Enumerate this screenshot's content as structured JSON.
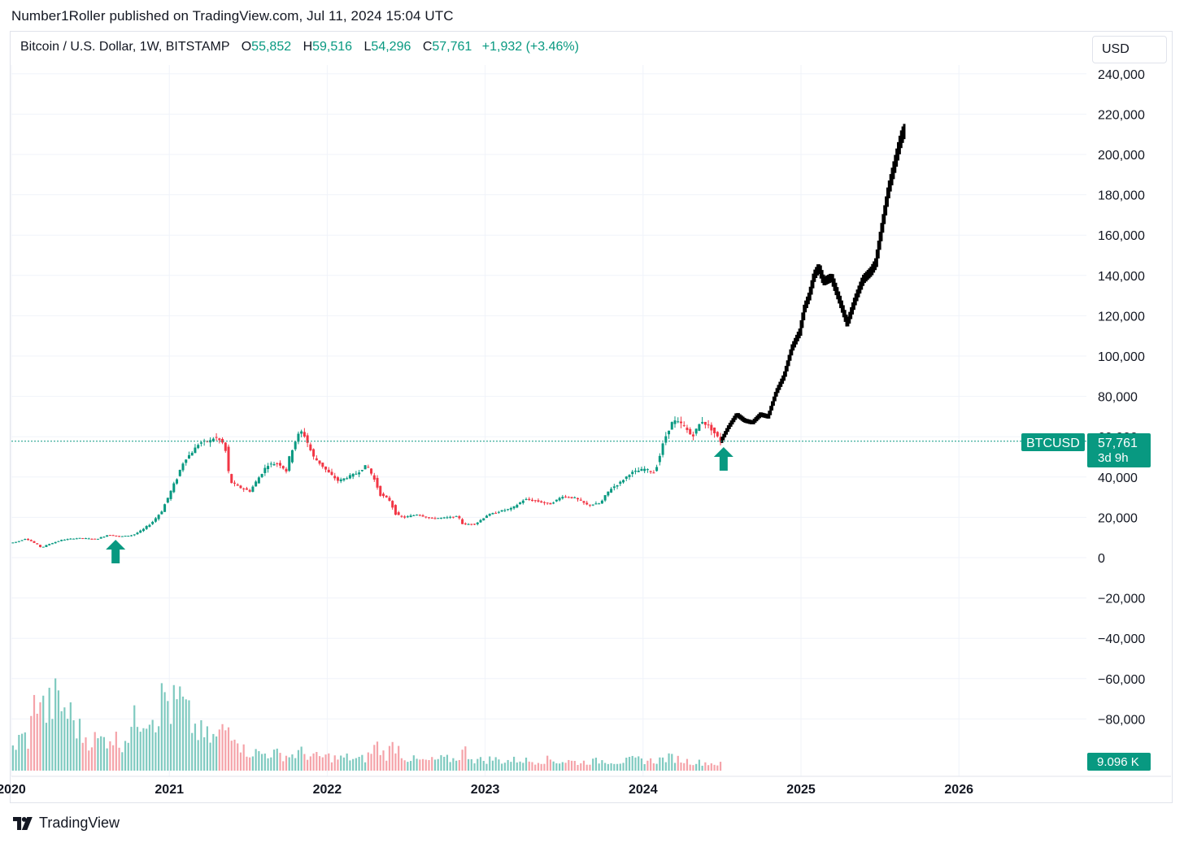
{
  "header": {
    "publisher_line": "Number1Roller published on TradingView.com, Jul 11, 2024 15:04 UTC"
  },
  "legend": {
    "symbol": "Bitcoin / U.S. Dollar, 1W, BITSTAMP",
    "open_key": "O",
    "open": "55,852",
    "high_key": "H",
    "high": "59,516",
    "low_key": "L",
    "low": "54,296",
    "close_key": "C",
    "close": "57,761",
    "change": "+1,932 (+3.46%)"
  },
  "currency_button": "USD",
  "footer": {
    "brand": "TradingView"
  },
  "price_tag": {
    "symbol": "BTCUSD",
    "price": "57,761",
    "countdown": "3d 9h"
  },
  "volume_tag": "9.096 K",
  "colors": {
    "up": "#089981",
    "down": "#f23645",
    "up_volume": "#7fcac0",
    "down_volume": "#f5a3a9",
    "projection": "#000000",
    "arrow": "#089981",
    "grid": "#f0f3fa",
    "axis_text": "#131722"
  },
  "chart_data": {
    "type": "candlestick",
    "interval": "1W",
    "x_axis_labels": [
      "2020",
      "2021",
      "2022",
      "2023",
      "2024",
      "2025",
      "2026"
    ],
    "y_axis_labels": [
      "240,000",
      "220,000",
      "200,000",
      "180,000",
      "160,000",
      "140,000",
      "120,000",
      "100,000",
      "80,000",
      "60,000",
      "40,000",
      "20,000",
      "0",
      "−20,000",
      "−40,000",
      "−60,000",
      "−80,000"
    ],
    "ylim": [
      -100000,
      250000
    ],
    "xlim": [
      2020.0,
      2026.6
    ],
    "grid": true,
    "current_price": 57761,
    "price_path": [
      [
        2020.0,
        7200
      ],
      [
        2020.05,
        8000
      ],
      [
        2020.1,
        9500
      ],
      [
        2020.14,
        8000
      ],
      [
        2020.2,
        5000
      ],
      [
        2020.25,
        6800
      ],
      [
        2020.33,
        8800
      ],
      [
        2020.4,
        9500
      ],
      [
        2020.45,
        9700
      ],
      [
        2020.55,
        9200
      ],
      [
        2020.62,
        11300
      ],
      [
        2020.7,
        10500
      ],
      [
        2020.78,
        11200
      ],
      [
        2020.84,
        13800
      ],
      [
        2020.9,
        17500
      ],
      [
        2020.96,
        23000
      ],
      [
        2021.02,
        33000
      ],
      [
        2021.05,
        38000
      ],
      [
        2021.1,
        48000
      ],
      [
        2021.15,
        52000
      ],
      [
        2021.2,
        57000
      ],
      [
        2021.27,
        58000
      ],
      [
        2021.3,
        60000
      ],
      [
        2021.36,
        56000
      ],
      [
        2021.39,
        38000
      ],
      [
        2021.45,
        35000
      ],
      [
        2021.52,
        33000
      ],
      [
        2021.57,
        39000
      ],
      [
        2021.63,
        46000
      ],
      [
        2021.7,
        47000
      ],
      [
        2021.75,
        43000
      ],
      [
        2021.79,
        55000
      ],
      [
        2021.84,
        63000
      ],
      [
        2021.87,
        60000
      ],
      [
        2021.92,
        50000
      ],
      [
        2021.96,
        47000
      ],
      [
        2022.02,
        42000
      ],
      [
        2022.08,
        38000
      ],
      [
        2022.14,
        40000
      ],
      [
        2022.2,
        42000
      ],
      [
        2022.26,
        46000
      ],
      [
        2022.3,
        40000
      ],
      [
        2022.35,
        31000
      ],
      [
        2022.4,
        29000
      ],
      [
        2022.45,
        21000
      ],
      [
        2022.5,
        20000
      ],
      [
        2022.58,
        21500
      ],
      [
        2022.66,
        19500
      ],
      [
        2022.76,
        19800
      ],
      [
        2022.84,
        20500
      ],
      [
        2022.87,
        16500
      ],
      [
        2022.95,
        16800
      ],
      [
        2023.02,
        21000
      ],
      [
        2023.1,
        23000
      ],
      [
        2023.18,
        24500
      ],
      [
        2023.26,
        29000
      ],
      [
        2023.34,
        28000
      ],
      [
        2023.42,
        26500
      ],
      [
        2023.5,
        30500
      ],
      [
        2023.58,
        29500
      ],
      [
        2023.66,
        26000
      ],
      [
        2023.74,
        27000
      ],
      [
        2023.8,
        34000
      ],
      [
        2023.86,
        37000
      ],
      [
        2023.93,
        42000
      ],
      [
        2024.02,
        44000
      ],
      [
        2024.08,
        42000
      ],
      [
        2024.12,
        52000
      ],
      [
        2024.16,
        62000
      ],
      [
        2024.2,
        68000
      ],
      [
        2024.26,
        66000
      ],
      [
        2024.32,
        60000
      ],
      [
        2024.38,
        68000
      ],
      [
        2024.44,
        64000
      ],
      [
        2024.5,
        57761
      ]
    ],
    "projection_path": [
      [
        2024.5,
        57761
      ],
      [
        2024.55,
        65000
      ],
      [
        2024.6,
        71000
      ],
      [
        2024.65,
        68000
      ],
      [
        2024.7,
        67000
      ],
      [
        2024.75,
        71000
      ],
      [
        2024.8,
        70000
      ],
      [
        2024.85,
        82000
      ],
      [
        2024.9,
        90000
      ],
      [
        2024.95,
        104000
      ],
      [
        2025.0,
        112000
      ],
      [
        2025.03,
        124000
      ],
      [
        2025.06,
        130000
      ],
      [
        2025.09,
        140000
      ],
      [
        2025.12,
        144000
      ],
      [
        2025.15,
        137000
      ],
      [
        2025.2,
        139000
      ],
      [
        2025.25,
        128000
      ],
      [
        2025.3,
        116000
      ],
      [
        2025.35,
        128000
      ],
      [
        2025.4,
        138000
      ],
      [
        2025.45,
        142000
      ],
      [
        2025.48,
        146000
      ],
      [
        2025.52,
        164000
      ],
      [
        2025.56,
        182000
      ],
      [
        2025.6,
        195000
      ],
      [
        2025.64,
        208000
      ],
      [
        2025.66,
        212000
      ]
    ],
    "volume_scale_max": 460,
    "volume": [
      [
        2020.0,
        62
      ],
      [
        2020.06,
        90
      ],
      [
        2020.1,
        85
      ],
      [
        2020.16,
        230
      ],
      [
        2020.2,
        150
      ],
      [
        2020.26,
        190
      ],
      [
        2020.32,
        170
      ],
      [
        2020.38,
        140
      ],
      [
        2020.44,
        95
      ],
      [
        2020.5,
        85
      ],
      [
        2020.56,
        80
      ],
      [
        2020.62,
        98
      ],
      [
        2020.68,
        72
      ],
      [
        2020.74,
        110
      ],
      [
        2020.8,
        150
      ],
      [
        2020.86,
        165
      ],
      [
        2020.92,
        155
      ],
      [
        2020.96,
        210
      ],
      [
        2021.0,
        165
      ],
      [
        2021.06,
        190
      ],
      [
        2021.1,
        150
      ],
      [
        2021.16,
        110
      ],
      [
        2021.22,
        90
      ],
      [
        2021.28,
        85
      ],
      [
        2021.34,
        110
      ],
      [
        2021.4,
        125
      ],
      [
        2021.46,
        55
      ],
      [
        2021.52,
        50
      ],
      [
        2021.58,
        45
      ],
      [
        2021.64,
        48
      ],
      [
        2021.7,
        42
      ],
      [
        2021.76,
        40
      ],
      [
        2021.82,
        50
      ],
      [
        2021.88,
        40
      ],
      [
        2021.94,
        36
      ],
      [
        2022.0,
        38
      ],
      [
        2022.06,
        32
      ],
      [
        2022.12,
        36
      ],
      [
        2022.18,
        30
      ],
      [
        2022.24,
        34
      ],
      [
        2022.3,
        70
      ],
      [
        2022.36,
        40
      ],
      [
        2022.42,
        75
      ],
      [
        2022.48,
        36
      ],
      [
        2022.54,
        30
      ],
      [
        2022.6,
        26
      ],
      [
        2022.66,
        28
      ],
      [
        2022.72,
        32
      ],
      [
        2022.8,
        30
      ],
      [
        2022.86,
        55
      ],
      [
        2022.92,
        30
      ],
      [
        2022.98,
        28
      ],
      [
        2023.04,
        32
      ],
      [
        2023.1,
        26
      ],
      [
        2023.16,
        28
      ],
      [
        2023.22,
        30
      ],
      [
        2023.28,
        25
      ],
      [
        2023.34,
        28
      ],
      [
        2023.4,
        30
      ],
      [
        2023.46,
        24
      ],
      [
        2023.52,
        26
      ],
      [
        2023.58,
        22
      ],
      [
        2023.64,
        24
      ],
      [
        2023.7,
        26
      ],
      [
        2023.76,
        28
      ],
      [
        2023.82,
        24
      ],
      [
        2023.88,
        26
      ],
      [
        2023.94,
        30
      ],
      [
        2024.0,
        28
      ],
      [
        2024.06,
        26
      ],
      [
        2024.12,
        32
      ],
      [
        2024.18,
        36
      ],
      [
        2024.24,
        28
      ],
      [
        2024.3,
        24
      ],
      [
        2024.36,
        22
      ],
      [
        2024.42,
        20
      ],
      [
        2024.48,
        18
      ]
    ],
    "annotations": [
      {
        "type": "arrow-up",
        "x": 2020.66,
        "y": 0
      },
      {
        "type": "arrow-up",
        "x": 2024.51,
        "y": 43000
      }
    ]
  }
}
